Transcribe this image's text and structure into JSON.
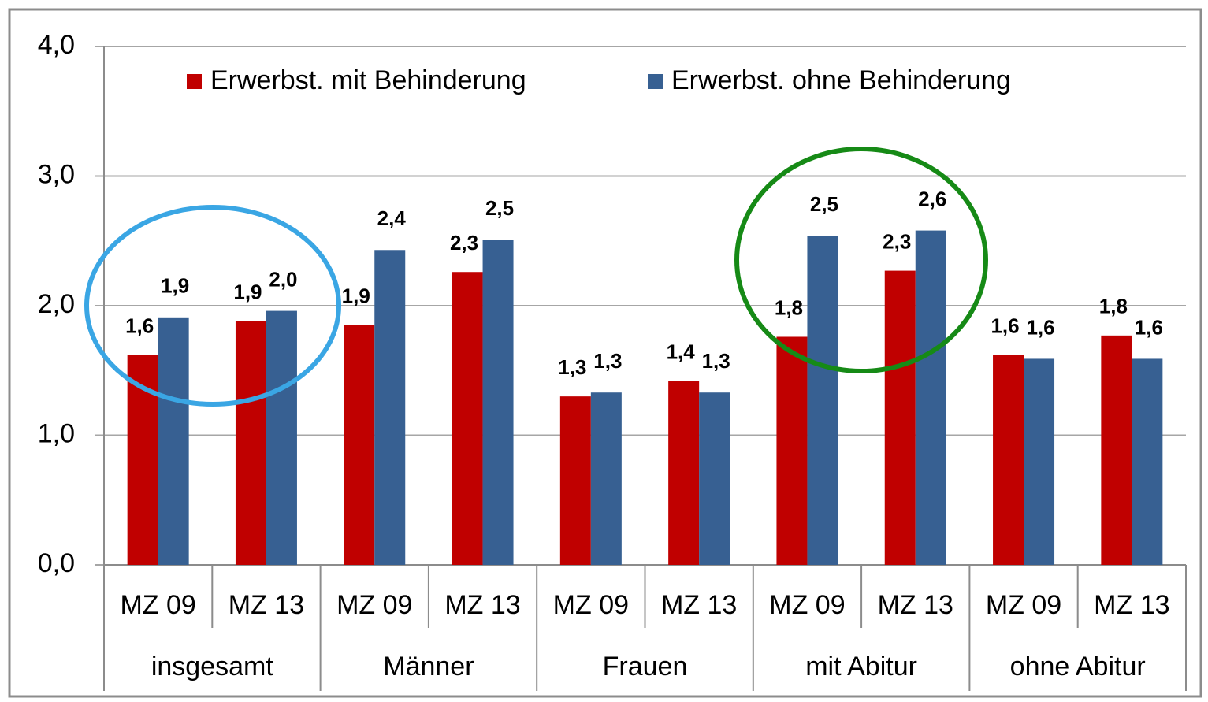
{
  "chart_data": {
    "type": "bar",
    "categories": [
      "MZ 09",
      "MZ 13",
      "MZ 09",
      "MZ 13",
      "MZ 09",
      "MZ 13",
      "MZ 09",
      "MZ 13",
      "MZ 09",
      "MZ 13"
    ],
    "groups": [
      "insgesamt",
      "Männer",
      "Frauen",
      "mit Abitur",
      "ohne Abitur"
    ],
    "series": [
      {
        "name": "Erwerbst. mit Behinderung",
        "color": "#c00000",
        "values": [
          1.62,
          1.88,
          1.85,
          2.26,
          1.3,
          1.42,
          1.76,
          2.27,
          1.62,
          1.77
        ],
        "value_labels": [
          "1,6",
          "1,9",
          "1,9",
          "2,3",
          "1,3",
          "1,4",
          "1,8",
          "2,3",
          "1,6",
          "1,8"
        ]
      },
      {
        "name": "Erwerbst. ohne Behinderung",
        "color": "#376092",
        "values": [
          1.91,
          1.96,
          2.43,
          2.51,
          1.33,
          1.33,
          2.54,
          2.58,
          1.59,
          1.59
        ],
        "value_labels": [
          "1,9",
          "2,0",
          "2,4",
          "2,5",
          "1,3",
          "1,3",
          "2,5",
          "2,6",
          "1,6",
          "1,6"
        ]
      }
    ],
    "ylim": [
      0,
      4
    ],
    "yticks": [
      {
        "value": 0,
        "label": "0,0"
      },
      {
        "value": 1,
        "label": "1,0"
      },
      {
        "value": 2,
        "label": "2,0"
      },
      {
        "value": 3,
        "label": "3,0"
      },
      {
        "value": 4,
        "label": "4,0"
      }
    ],
    "grid": true,
    "legend": "top"
  }
}
